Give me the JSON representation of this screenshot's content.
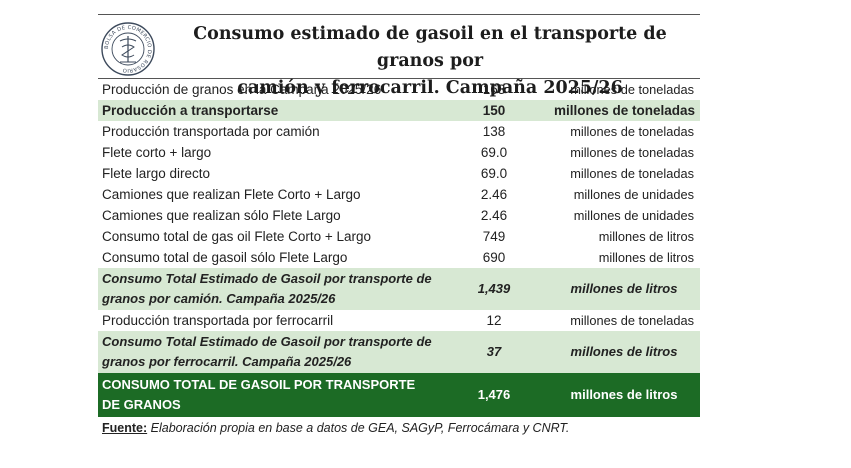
{
  "header": {
    "title_line1": "Consumo estimado de gasoil en el transporte de granos por",
    "title_line2": "camión y ferrocarril. Campaña 2025/26",
    "seal_text": "BOLSA DE COMERCIO DE ROSARIO"
  },
  "rows": [
    {
      "label": "Producción de granos en la Campaña 2025/26",
      "value": "163",
      "unit": "millones de toneladas"
    },
    {
      "label": "Producción a transportarse",
      "value": "150",
      "unit": "millones de toneladas"
    },
    {
      "label": "Producción transportada por camión",
      "value": "138",
      "unit": "millones de toneladas"
    },
    {
      "label": "Flete corto + largo",
      "value": "69.0",
      "unit": "millones de toneladas"
    },
    {
      "label": "Flete largo directo",
      "value": "69.0",
      "unit": "millones de toneladas"
    },
    {
      "label": "Camiones que realizan Flete Corto + Largo",
      "value": "2.46",
      "unit": "millones de unidades"
    },
    {
      "label": "Camiones que realizan sólo Flete Largo",
      "value": "2.46",
      "unit": "millones de unidades"
    },
    {
      "label": "Consumo total de gas oil Flete Corto + Largo",
      "value": "749",
      "unit": "millones de litros"
    },
    {
      "label": "Consumo total de gasoil sólo Flete Largo",
      "value": "690",
      "unit": "millones de litros"
    },
    {
      "label": "Consumo Total Estimado de Gasoil por transporte de granos por camión. Campaña 2025/26",
      "value": "1,439",
      "unit": "millones de litros"
    },
    {
      "label": "Producción transportada por ferrocarril",
      "value": "12",
      "unit": "millones de toneladas"
    },
    {
      "label": "Consumo Total Estimado de Gasoil por transporte de granos por ferrocarril. Campaña 2025/26",
      "value": "37",
      "unit": "millones de litros"
    },
    {
      "label": "CONSUMO TOTAL DE GASOIL POR TRANSPORTE DE GRANOS",
      "value": "1,476",
      "unit": "millones de litros"
    }
  ],
  "footer": {
    "label": "Fuente:",
    "text": "Elaboración propia en base a datos de GEA, SAGyP,  Ferrocámara y CNRT."
  },
  "colors": {
    "highlight": "#d7e8d3",
    "total": "#1c6b25"
  }
}
